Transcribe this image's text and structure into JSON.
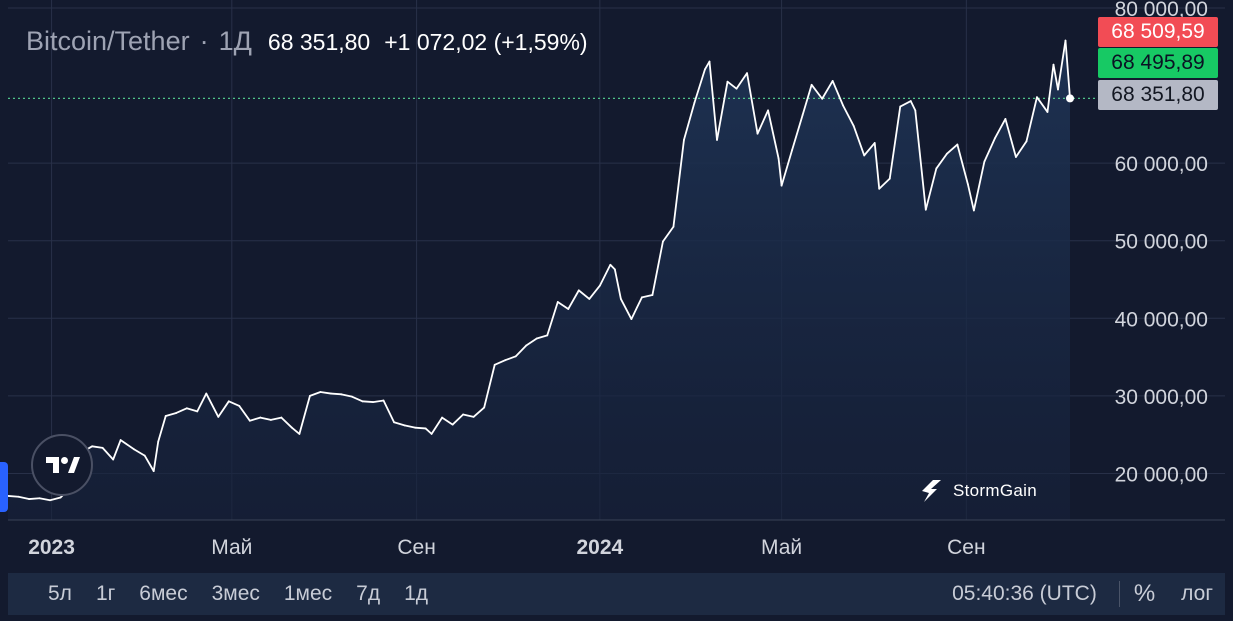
{
  "header": {
    "symbol": "Bitcoin/Tether",
    "separator": "·",
    "interval": "1Д",
    "last_price": "68 351,80",
    "change": "+1 072,02 (+1,59%)"
  },
  "price_tags": {
    "ask": "68 509,59",
    "bid": "68 495,89",
    "last": "68 351,80"
  },
  "watermark": {
    "brand": "StormGain",
    "icon": "lightning-bolt-icon"
  },
  "toolbar": {
    "ranges": [
      "5л",
      "1г",
      "6мес",
      "3мес",
      "1мес",
      "7д",
      "1д"
    ],
    "clock": "05:40:36 (UTC)",
    "percent_label": "%",
    "log_label": "лог"
  },
  "colors": {
    "background": "#131a2e",
    "line": "#ffffff",
    "area_fill": "#1c2c48",
    "grid": "#283048",
    "ask": "#f24c55",
    "bid": "#17c964",
    "last": "#b4b8c5",
    "toolbar": "#1d2a42"
  },
  "chart_data": {
    "type": "area",
    "title": "Bitcoin/Tether · 1Д",
    "xlabel": "",
    "ylabel": "",
    "grid": true,
    "ylim": [
      14000,
      80000
    ],
    "xlim": [
      "2022-12-03",
      "2024-11-09"
    ],
    "y_ticks": [
      {
        "value": 20000,
        "label": "20 000,00"
      },
      {
        "value": 30000,
        "label": "30 000,00"
      },
      {
        "value": 40000,
        "label": "40 000,00"
      },
      {
        "value": 50000,
        "label": "50 000,00"
      },
      {
        "value": 60000,
        "label": "60 000,00"
      },
      {
        "value": 80000,
        "label": "80 000,00"
      }
    ],
    "x_ticks": [
      {
        "date": "2023-01-01",
        "label": "2023",
        "bold": true
      },
      {
        "date": "2023-05-01",
        "label": "Май",
        "bold": false
      },
      {
        "date": "2023-09-01",
        "label": "Сен",
        "bold": false
      },
      {
        "date": "2024-01-01",
        "label": "2024",
        "bold": true
      },
      {
        "date": "2024-05-01",
        "label": "Май",
        "bold": false
      },
      {
        "date": "2024-09-01",
        "label": "Сен",
        "bold": false
      }
    ],
    "last_price_line": 68351.8,
    "series": [
      {
        "x": [
          "2022-12-03",
          "2022-12-10",
          "2022-12-17",
          "2022-12-24",
          "2022-12-31",
          "2023-01-07",
          "2023-01-10",
          "2023-01-14",
          "2023-01-21",
          "2023-01-28",
          "2023-02-04",
          "2023-02-11",
          "2023-02-16",
          "2023-02-25",
          "2023-03-04",
          "2023-03-10",
          "2023-03-13",
          "2023-03-18",
          "2023-03-25",
          "2023-04-01",
          "2023-04-08",
          "2023-04-14",
          "2023-04-22",
          "2023-04-29",
          "2023-05-06",
          "2023-05-13",
          "2023-05-20",
          "2023-05-27",
          "2023-06-03",
          "2023-06-10",
          "2023-06-15",
          "2023-06-22",
          "2023-06-29",
          "2023-07-06",
          "2023-07-13",
          "2023-07-20",
          "2023-07-27",
          "2023-08-03",
          "2023-08-10",
          "2023-08-17",
          "2023-08-24",
          "2023-08-31",
          "2023-09-07",
          "2023-09-11",
          "2023-09-18",
          "2023-09-25",
          "2023-10-02",
          "2023-10-09",
          "2023-10-16",
          "2023-10-23",
          "2023-10-30",
          "2023-11-06",
          "2023-11-13",
          "2023-11-20",
          "2023-11-27",
          "2023-12-04",
          "2023-12-11",
          "2023-12-18",
          "2023-12-25",
          "2024-01-01",
          "2024-01-08",
          "2024-01-11",
          "2024-01-15",
          "2024-01-22",
          "2024-01-29",
          "2024-02-05",
          "2024-02-12",
          "2024-02-19",
          "2024-02-26",
          "2024-03-04",
          "2024-03-11",
          "2024-03-14",
          "2024-03-19",
          "2024-03-26",
          "2024-04-01",
          "2024-04-08",
          "2024-04-15",
          "2024-04-22",
          "2024-04-29",
          "2024-05-01",
          "2024-05-08",
          "2024-05-15",
          "2024-05-21",
          "2024-05-28",
          "2024-06-04",
          "2024-06-11",
          "2024-06-18",
          "2024-06-25",
          "2024-07-02",
          "2024-07-05",
          "2024-07-12",
          "2024-07-19",
          "2024-07-26",
          "2024-07-29",
          "2024-08-05",
          "2024-08-12",
          "2024-08-19",
          "2024-08-26",
          "2024-09-02",
          "2024-09-06",
          "2024-09-13",
          "2024-09-20",
          "2024-09-27",
          "2024-10-04",
          "2024-10-11",
          "2024-10-18",
          "2024-10-25",
          "2024-10-29",
          "2024-11-01",
          "2024-11-06",
          "2024-11-09"
        ],
        "y": [
          17100,
          17000,
          16700,
          16800,
          16550,
          16900,
          17500,
          20800,
          22700,
          23500,
          23300,
          21800,
          24300,
          23100,
          22300,
          20300,
          24100,
          27400,
          27800,
          28400,
          28000,
          30300,
          27300,
          29300,
          28700,
          26800,
          27200,
          26900,
          27200,
          25900,
          25100,
          30000,
          30500,
          30300,
          30200,
          29900,
          29300,
          29200,
          29400,
          26600,
          26200,
          25900,
          25800,
          25100,
          27200,
          26300,
          27600,
          27300,
          28500,
          34000,
          34600,
          35100,
          36500,
          37400,
          37800,
          42100,
          41200,
          43600,
          42500,
          44200,
          46900,
          46300,
          42500,
          39900,
          42700,
          43000,
          49900,
          51800,
          63000,
          67800,
          72100,
          73100,
          63000,
          70500,
          69600,
          71600,
          63800,
          66800,
          60600,
          57100,
          61700,
          66200,
          70100,
          68300,
          70600,
          67400,
          64800,
          61000,
          62600,
          56700,
          58000,
          67300,
          68000,
          66800,
          54000,
          59300,
          61200,
          62400,
          57300,
          53900,
          60200,
          63200,
          65700,
          60800,
          62800,
          68500,
          66600,
          72700,
          69500,
          75800,
          68351.8
        ]
      }
    ]
  }
}
